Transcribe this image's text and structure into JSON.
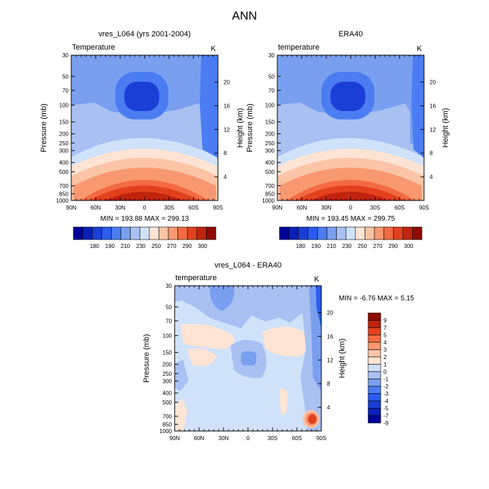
{
  "figure": {
    "title": "ANN"
  },
  "panel_left": {
    "title": "vres_L064 (yrs 2001-2004)",
    "variable": "Temperature",
    "units": "K",
    "ylabel": "Pressure (mb)",
    "ylabel_right": "Height (km)",
    "stats": "MIN = 193.88  MAX = 299.13"
  },
  "panel_right": {
    "title": "ERA40",
    "variable": "temperature",
    "units": "K",
    "ylabel": "Pressure (mb)",
    "ylabel_right": "Height (km)",
    "stats": "MIN = 193.45  MAX = 299.75"
  },
  "panel_diff": {
    "title": "vres_L064 - ERA40",
    "variable": "temperature",
    "units": "K",
    "ylabel": "Pressure (mb)",
    "ylabel_right": "Height (km)",
    "stats": "MIN =  -6.76  MAX =   5.15"
  },
  "colorbar_abs": {
    "colors": [
      "#000099",
      "#0a1fb8",
      "#1a3fd6",
      "#2a5cf0",
      "#4a7df2",
      "#7a9ff0",
      "#a8c0f2",
      "#d0e2fa",
      "#fde4d4",
      "#fbc4a6",
      "#f89870",
      "#f26a42",
      "#e3401e",
      "#c0240e",
      "#8f0a02"
    ],
    "labels": [
      "180",
      "190",
      "210",
      "230",
      "250",
      "270",
      "290",
      "300"
    ]
  },
  "colorbar_diff": {
    "colors": [
      "#000099",
      "#0a1fb8",
      "#1a3fd6",
      "#2a5cf0",
      "#4a7df2",
      "#7a9ff0",
      "#a8c0f2",
      "#d0e2fa",
      "#fde4d4",
      "#fbc4a6",
      "#f89870",
      "#f26a42",
      "#e3401e",
      "#c0240e",
      "#8f0a02"
    ],
    "labels": [
      "9",
      "7",
      "5",
      "4",
      "3",
      "2",
      "1",
      "0",
      "-1",
      "-2",
      "-3",
      "-4",
      "-5",
      "-7",
      "-9"
    ]
  },
  "chart_data": [
    {
      "type": "heatmap",
      "title": "vres_L064 (yrs 2001-2004)",
      "xlabel": "",
      "ylabel": "Pressure (mb)",
      "y2label": "Height (km)",
      "x_ticks": [
        "90N",
        "60N",
        "30N",
        "0",
        "30S",
        "60S",
        "90S"
      ],
      "y_ticks": [
        "30",
        "50",
        "70",
        "100",
        "150",
        "200",
        "250",
        "300",
        "400",
        "500",
        "700",
        "850",
        "1000"
      ],
      "y2_ticks": [
        "20",
        "16",
        "12",
        "8",
        "4"
      ],
      "units": "K",
      "min": 193.88,
      "max": 299.13
    },
    {
      "type": "heatmap",
      "title": "ERA40",
      "xlabel": "",
      "ylabel": "Pressure (mb)",
      "y2label": "Height (km)",
      "x_ticks": [
        "90N",
        "60N",
        "30N",
        "0",
        "30S",
        "60S",
        "90S"
      ],
      "y_ticks": [
        "30",
        "50",
        "70",
        "100",
        "150",
        "200",
        "250",
        "300",
        "400",
        "500",
        "700",
        "850",
        "1000"
      ],
      "y2_ticks": [
        "20",
        "16",
        "12",
        "8",
        "4"
      ],
      "units": "K",
      "min": 193.45,
      "max": 299.75
    },
    {
      "type": "heatmap",
      "title": "vres_L064 - ERA40",
      "xlabel": "",
      "ylabel": "Pressure (mb)",
      "y2label": "Height (km)",
      "x_ticks": [
        "90N",
        "60N",
        "30N",
        "0",
        "30S",
        "60S",
        "90S"
      ],
      "y_ticks": [
        "30",
        "50",
        "70",
        "100",
        "150",
        "200",
        "250",
        "300",
        "400",
        "500",
        "700",
        "850",
        "1000"
      ],
      "y2_ticks": [
        "20",
        "16",
        "12",
        "8",
        "4"
      ],
      "units": "K",
      "min": -6.76,
      "max": 5.15
    }
  ]
}
